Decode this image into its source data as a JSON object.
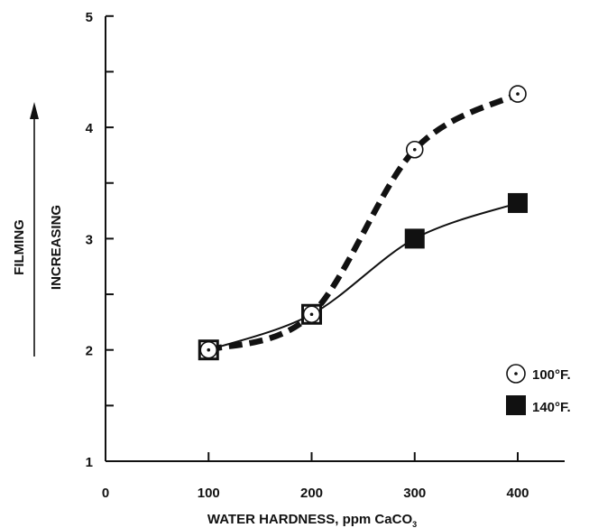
{
  "chart_data": {
    "type": "line",
    "title": "",
    "xlabel": "WATER HARDNESS, ppm CaCO",
    "xlabel_subscript": "3",
    "ylabel": "FILMING",
    "ylabel_arrow": "INCREASING",
    "x_ticks": [
      "0",
      "100",
      "200",
      "300",
      "400"
    ],
    "y_ticks": [
      "1",
      "2",
      "3",
      "4",
      "5"
    ],
    "xlim": [
      0,
      400
    ],
    "ylim": [
      1,
      5
    ],
    "grid": false,
    "legend_position": "bottom-right",
    "series": [
      {
        "name": "100°F.",
        "marker": "circle-dot",
        "line": "dashed-thick",
        "x": [
          100,
          200,
          300,
          400
        ],
        "y": [
          2.0,
          2.32,
          3.8,
          4.3
        ]
      },
      {
        "name": "140°F.",
        "marker": "filled-square",
        "line": "solid",
        "x": [
          100,
          200,
          300,
          400
        ],
        "y": [
          2.0,
          2.32,
          3.0,
          3.32
        ]
      }
    ]
  },
  "colors": {
    "ink": "#111111",
    "background": "#ffffff"
  }
}
